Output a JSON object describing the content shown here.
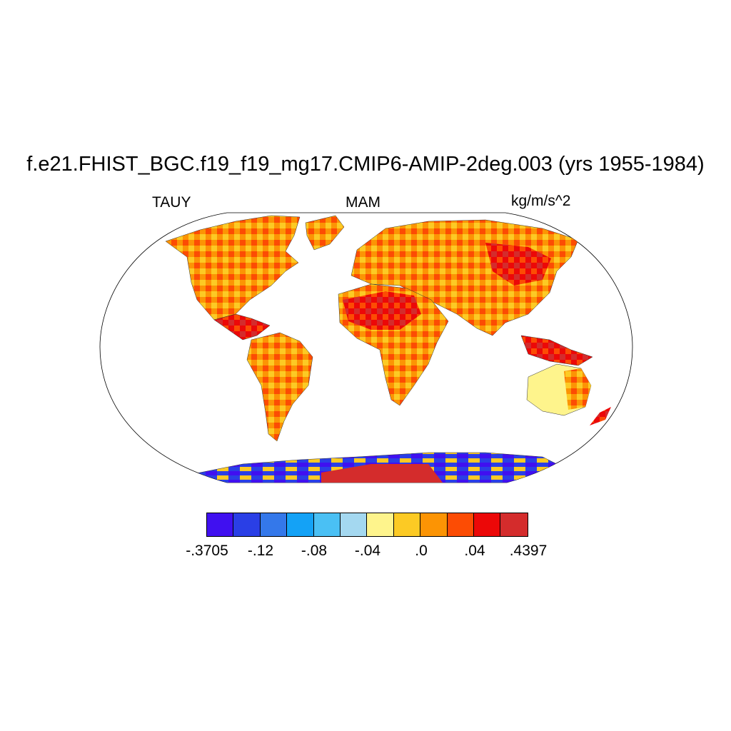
{
  "header": {
    "title": "f.e21.FHIST_BGC.f19_f19_mg17.CMIP6-AMIP-2deg.003 (yrs 1955-1984)",
    "variable": "TAUY",
    "season": "MAM",
    "units": "kg/m/s^2"
  },
  "colorbar": {
    "colors": [
      "#4010f0",
      "#2a3fe6",
      "#3478ea",
      "#14a2f6",
      "#4ac0f4",
      "#a4d8f0",
      "#fef48c",
      "#fcca24",
      "#fc9404",
      "#fc4c04",
      "#ec0808",
      "#d42c2c"
    ],
    "labels": [
      "-.3705",
      "-.12",
      "-.08",
      "-.04",
      ".0",
      ".04",
      ".4397"
    ]
  },
  "map": {
    "projection": "Robinson",
    "land_color_dominant": "warm (orange/red)",
    "ocean": "no data"
  }
}
